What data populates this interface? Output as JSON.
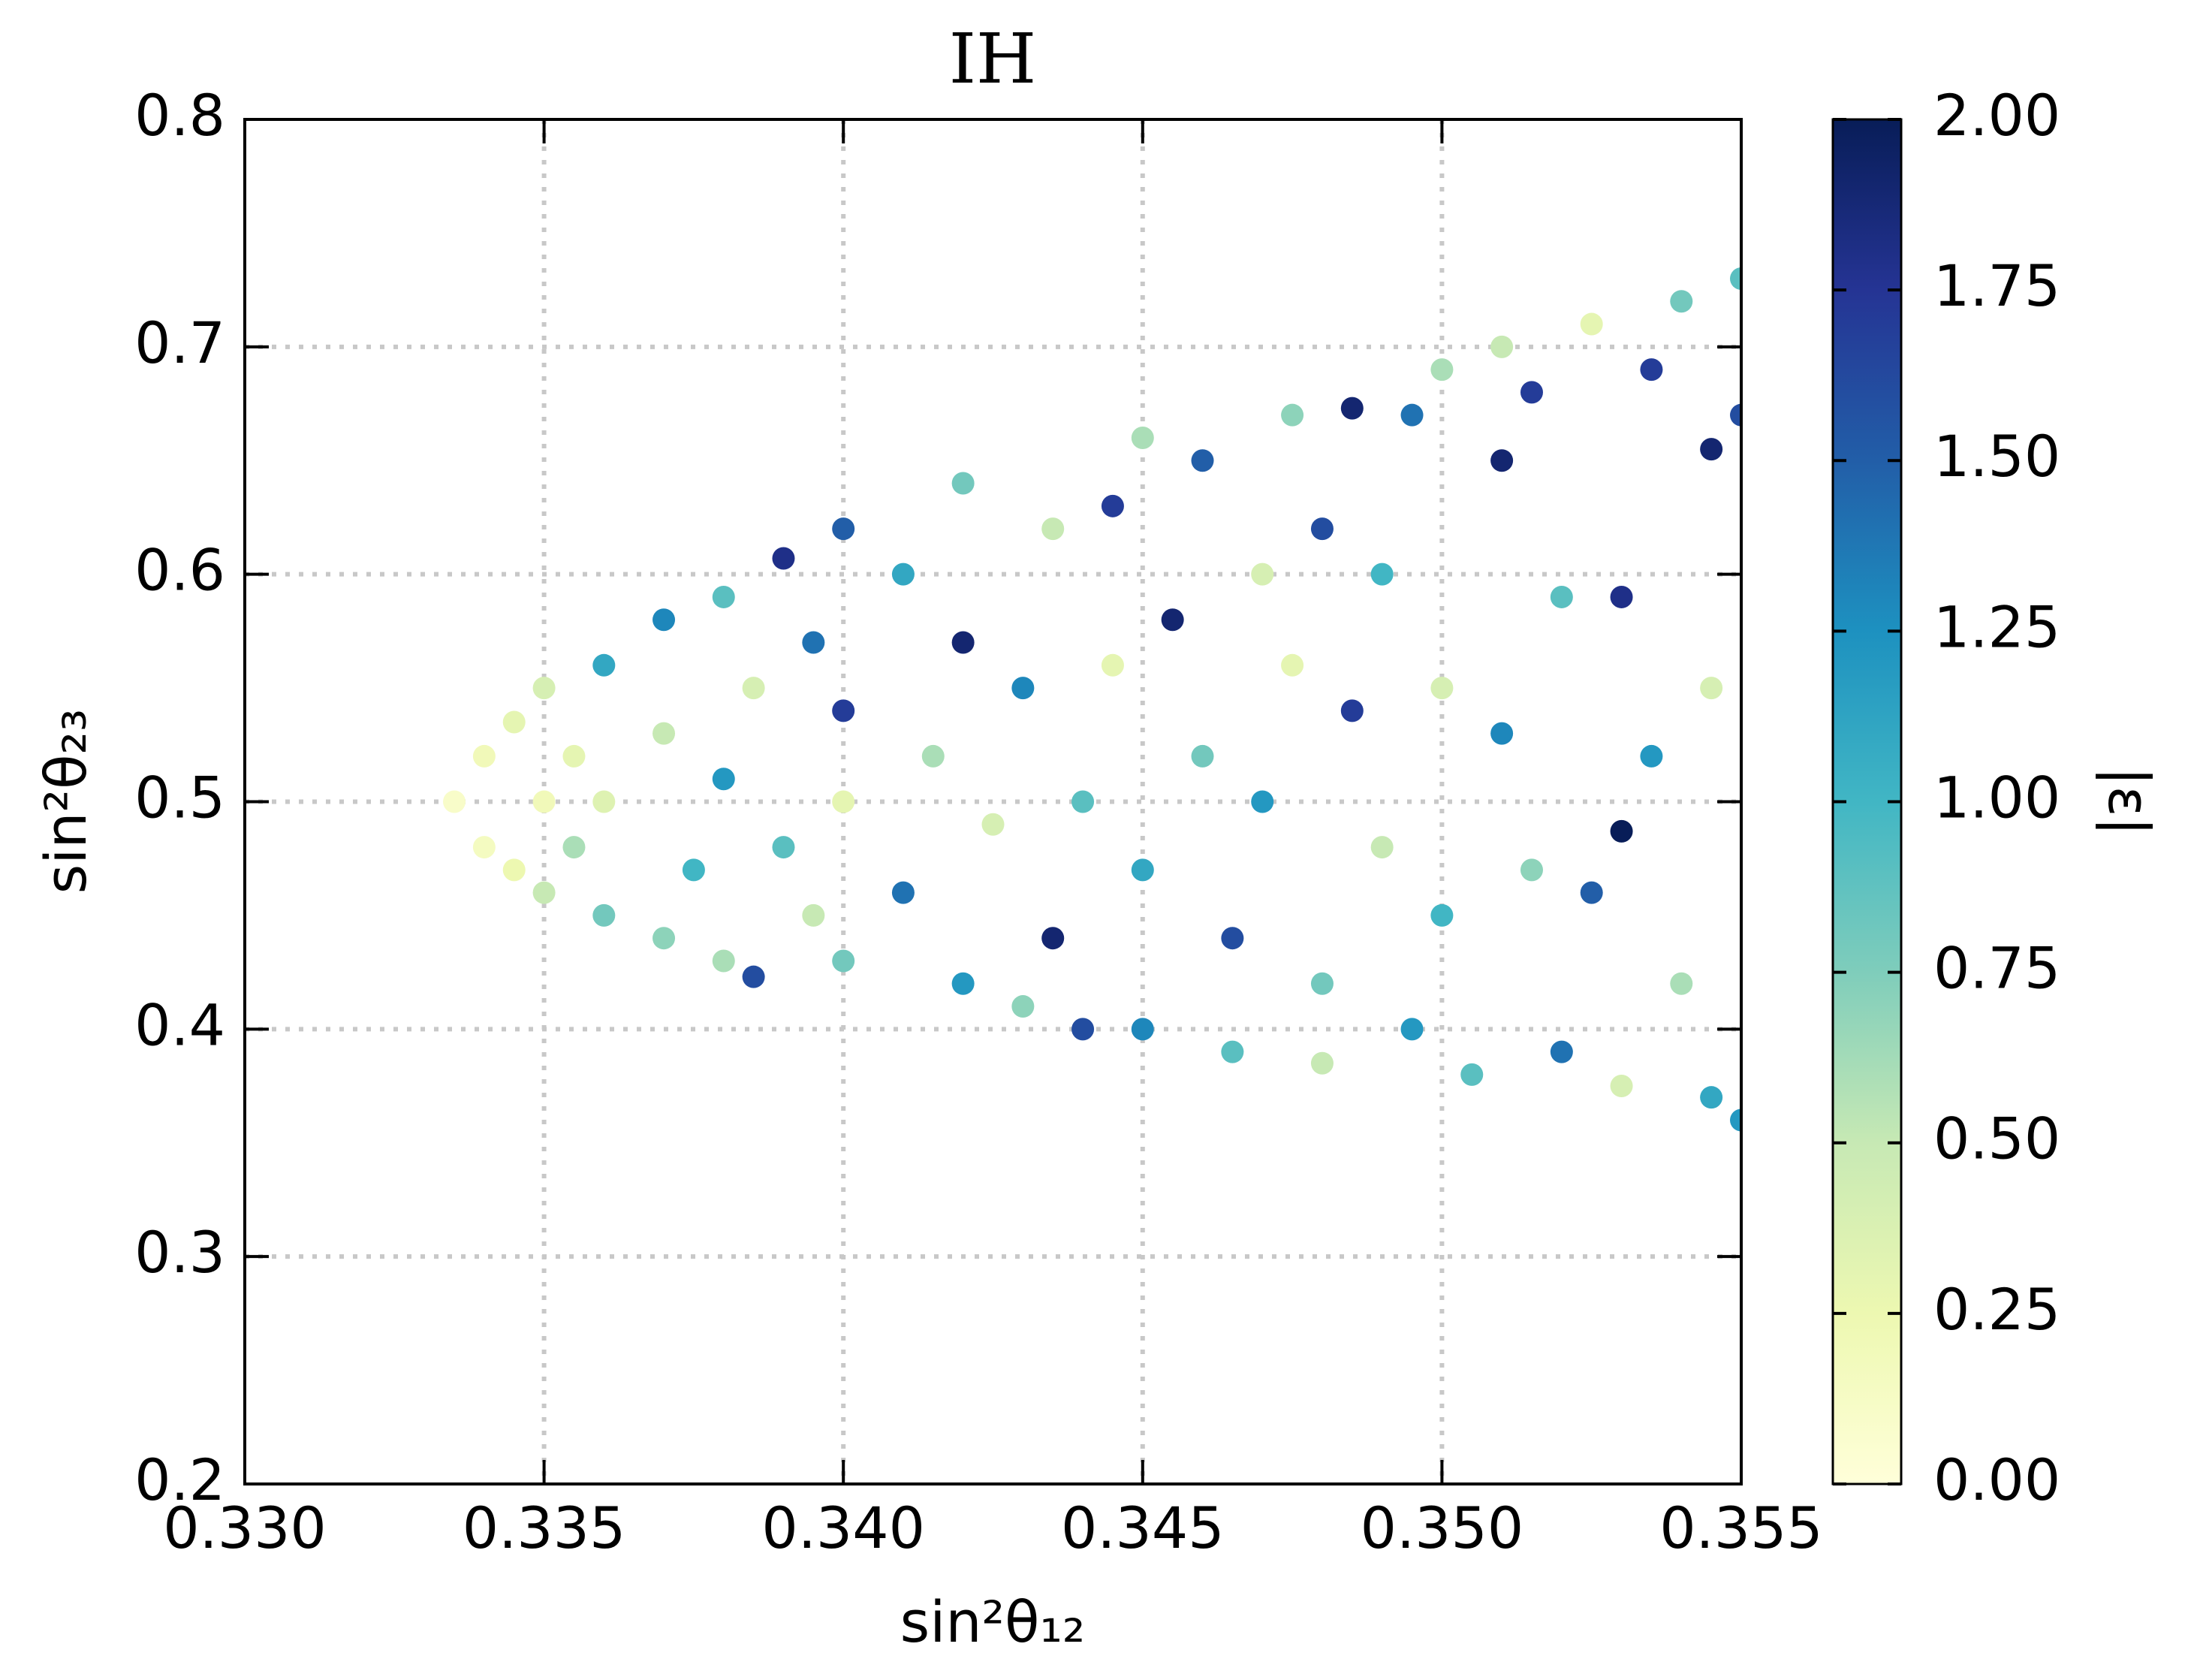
{
  "chart_data": {
    "type": "scatter",
    "title": "IH",
    "x_label": "sin²θ₁₂",
    "y_label": "sin²θ₂₃",
    "colorbar_label": "|ε|",
    "colormap": [
      "#ffffd9",
      "#edf8b1",
      "#c7e9b4",
      "#7fcdbb",
      "#41b6c4",
      "#1d91c0",
      "#225ea8",
      "#253494",
      "#081d58"
    ],
    "xlim": [
      0.33,
      0.355
    ],
    "xticks": [
      {
        "value": 0.33,
        "label": "0.330"
      },
      0.335,
      {
        "value": 0.34,
        "label": "0.340"
      },
      0.345,
      {
        "value": 0.35,
        "label": "0.350"
      },
      0.355
    ],
    "ylim": [
      0.2,
      0.8
    ],
    "yticks": [
      0.2,
      0.3,
      0.4,
      0.5,
      0.6,
      0.7,
      0.8
    ],
    "clim": [
      0,
      2
    ],
    "cticks": [
      {
        "value": 0,
        "label": "0.00"
      },
      {
        "value": 0.25,
        "label": "0.25"
      },
      {
        "value": 0.5,
        "label": "0.50"
      },
      {
        "value": 0.75,
        "label": "0.75"
      },
      {
        "value": 1,
        "label": "1.00"
      },
      {
        "value": 1.25,
        "label": "1.25"
      },
      {
        "value": 1.5,
        "label": "1.50"
      },
      {
        "value": 1.75,
        "label": "1.75"
      },
      {
        "value": 2,
        "label": "2.00"
      }
    ],
    "grid": true,
    "x": [
      0.3335,
      0.334,
      0.334,
      0.3345,
      0.3345,
      0.335,
      0.335,
      0.335,
      0.3355,
      0.3355,
      0.336,
      0.336,
      0.336,
      0.337,
      0.337,
      0.337,
      0.3375,
      0.338,
      0.338,
      0.338,
      0.3385,
      0.3385,
      0.339,
      0.339,
      0.3395,
      0.3395,
      0.34,
      0.34,
      0.34,
      0.34,
      0.341,
      0.341,
      0.3415,
      0.342,
      0.342,
      0.342,
      0.3425,
      0.343,
      0.343,
      0.3435,
      0.3435,
      0.344,
      0.344,
      0.3445,
      0.3445,
      0.345,
      0.345,
      0.345,
      0.3455,
      0.346,
      0.346,
      0.3465,
      0.3465,
      0.347,
      0.347,
      0.3475,
      0.3475,
      0.348,
      0.348,
      0.348,
      0.3485,
      0.3485,
      0.349,
      0.349,
      0.3495,
      0.3495,
      0.35,
      0.35,
      0.35,
      0.3505,
      0.351,
      0.351,
      0.351,
      0.3515,
      0.3515,
      0.352,
      0.352,
      0.3525,
      0.3525,
      0.353,
      0.353,
      0.353,
      0.3535,
      0.3535,
      0.354,
      0.354,
      0.3545,
      0.3545,
      0.3545,
      0.355,
      0.355,
      0.355
    ],
    "y": [
      0.5,
      0.52,
      0.48,
      0.535,
      0.47,
      0.5,
      0.55,
      0.46,
      0.52,
      0.48,
      0.56,
      0.45,
      0.5,
      0.58,
      0.44,
      0.53,
      0.47,
      0.59,
      0.43,
      0.51,
      0.55,
      0.423,
      0.607,
      0.48,
      0.57,
      0.45,
      0.62,
      0.54,
      0.43,
      0.5,
      0.6,
      0.46,
      0.52,
      0.64,
      0.42,
      0.57,
      0.49,
      0.55,
      0.41,
      0.44,
      0.62,
      0.5,
      0.4,
      0.63,
      0.56,
      0.47,
      0.66,
      0.4,
      0.58,
      0.52,
      0.65,
      0.39,
      0.44,
      0.6,
      0.5,
      0.67,
      0.56,
      0.62,
      0.42,
      0.385,
      0.673,
      0.54,
      0.48,
      0.6,
      0.67,
      0.4,
      0.55,
      0.69,
      0.45,
      0.38,
      0.65,
      0.53,
      0.7,
      0.47,
      0.68,
      0.39,
      0.59,
      0.46,
      0.71,
      0.487,
      0.59,
      0.375,
      0.69,
      0.52,
      0.42,
      0.72,
      0.655,
      0.37,
      0.55,
      0.73,
      0.36,
      0.67
    ],
    "c": [
      0.1,
      0.2,
      0.15,
      0.3,
      0.25,
      0.2,
      0.4,
      0.5,
      0.3,
      0.6,
      1.1,
      0.8,
      0.35,
      1.3,
      0.7,
      0.5,
      1.0,
      0.9,
      0.6,
      1.2,
      0.4,
      1.6,
      1.8,
      0.9,
      1.4,
      0.5,
      1.5,
      1.7,
      0.8,
      0.3,
      1.1,
      1.4,
      0.6,
      0.8,
      1.2,
      1.9,
      0.4,
      1.3,
      0.7,
      1.9,
      0.5,
      0.9,
      1.6,
      1.7,
      0.3,
      1.1,
      0.6,
      1.3,
      1.9,
      0.8,
      1.5,
      0.9,
      1.6,
      0.4,
      1.2,
      0.7,
      0.3,
      1.6,
      0.8,
      0.5,
      1.9,
      1.7,
      0.5,
      1.0,
      1.4,
      1.2,
      0.4,
      0.6,
      1.0,
      0.9,
      1.9,
      1.3,
      0.5,
      0.7,
      1.7,
      1.4,
      0.9,
      1.5,
      0.3,
      2.0,
      1.8,
      0.4,
      1.7,
      1.2,
      0.6,
      0.8,
      1.9,
      1.1,
      0.4,
      0.9,
      1.2,
      1.6
    ]
  }
}
